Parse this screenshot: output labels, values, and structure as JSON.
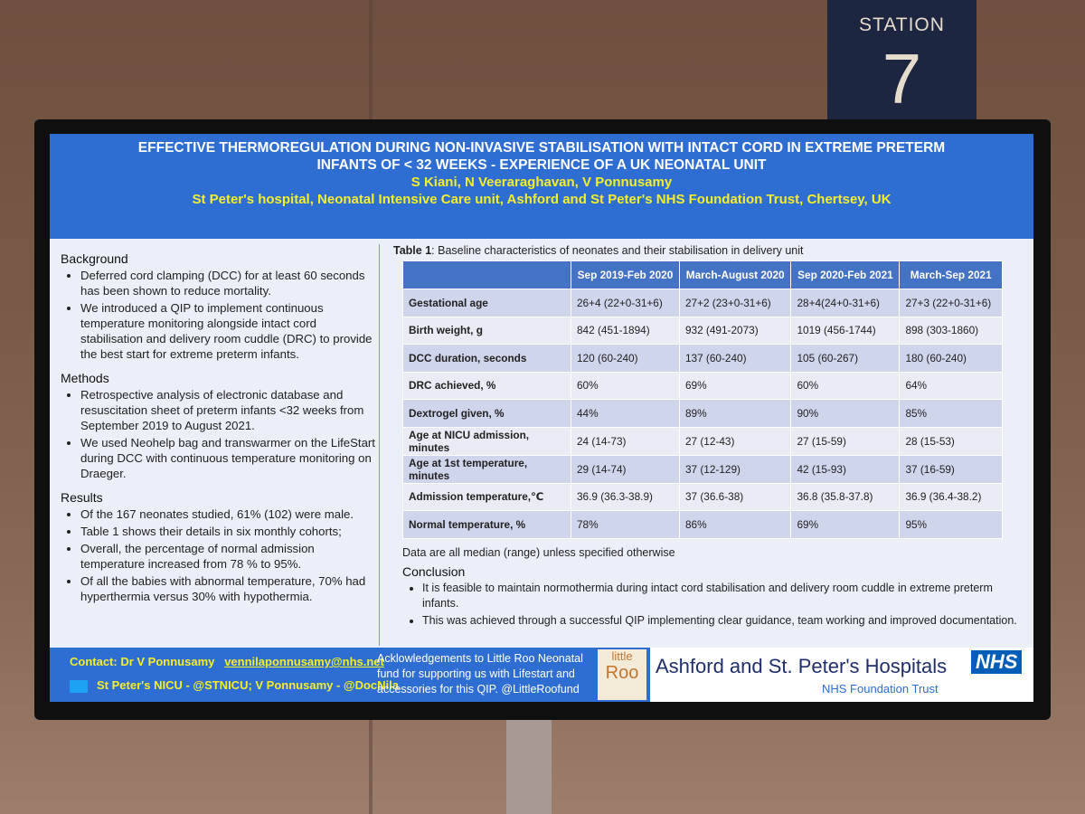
{
  "sign": {
    "label": "STATION",
    "number": "7"
  },
  "header": {
    "title_line1": "EFFECTIVE THERMOREGULATION DURING NON-INVASIVE STABILISATION WITH INTACT CORD IN EXTREME PRETERM",
    "title_line2": "INFANTS OF < 32 WEEKS - EXPERIENCE OF A UK NEONATAL UNIT",
    "authors": "S Kiani, N Veeraraghavan, V Ponnusamy",
    "affiliation": "St Peter's hospital, Neonatal Intensive Care unit, Ashford and St Peter's NHS Foundation Trust, Chertsey, UK"
  },
  "sections": [
    {
      "heading": "Background",
      "bullets": [
        "Deferred cord clamping (DCC) for at least 60 seconds has been shown to reduce mortality.",
        "We introduced a QIP to implement continuous temperature monitoring alongside intact cord stabilisation and delivery room cuddle (DRC) to provide the best start for extreme preterm infants."
      ]
    },
    {
      "heading": "Methods",
      "bullets": [
        "Retrospective analysis of electronic database and resuscitation sheet of preterm infants <32 weeks from September 2019 to August 2021.",
        "We used Neohelp bag and transwarmer on the LifeStart during DCC with continuous temperature monitoring on Draeger."
      ]
    },
    {
      "heading": "Results",
      "bullets": [
        "Of the 167 neonates studied, 61% (102) were male.",
        "Table 1 shows their details in six monthly cohorts;",
        "Overall, the percentage of normal admission temperature increased from 78 % to 95%.",
        "Of all the babies with abnormal temperature, 70% had hyperthermia versus 30% with hypothermia."
      ]
    }
  ],
  "table": {
    "caption_label": "Table 1",
    "caption": ": Baseline characteristics of neonates and their stabilisation in delivery unit",
    "columns": [
      "Sep 2019-Feb 2020",
      "March-August 2020",
      "Sep 2020-Feb 2021",
      "March-Sep 2021"
    ],
    "rows": [
      [
        "Gestational age",
        "26+4 (22+0-31+6)",
        "27+2 (23+0-31+6)",
        "28+4(24+0-31+6)",
        "27+3 (22+0-31+6)"
      ],
      [
        "Birth weight, g",
        "842 (451-1894)",
        "932 (491-2073)",
        "1019 (456-1744)",
        "898 (303-1860)"
      ],
      [
        "DCC duration, seconds",
        "120 (60-240)",
        "137 (60-240)",
        "105 (60-267)",
        "180 (60-240)"
      ],
      [
        "DRC achieved, %",
        "60%",
        "69%",
        "60%",
        "64%"
      ],
      [
        "Dextrogel given, %",
        "44%",
        "89%",
        "90%",
        "85%"
      ],
      [
        "Age at NICU admission, minutes",
        "24 (14-73)",
        "27 (12-43)",
        "27 (15-59)",
        "28 (15-53)"
      ],
      [
        "Age at 1st temperature, minutes",
        "29 (14-74)",
        "37 (12-129)",
        "42 (15-93)",
        "37 (16-59)"
      ],
      [
        "Admission temperature,℃",
        "36.9 (36.3-38.9)",
        "37 (36.6-38)",
        "36.8 (35.8-37.8)",
        "36.9 (36.4-38.2)"
      ],
      [
        "Normal temperature, %",
        "78%",
        "86%",
        "69%",
        "95%"
      ]
    ],
    "note": "Data are all median (range) unless specified otherwise"
  },
  "conclusion": {
    "heading": "Conclusion",
    "bullets": [
      "It is feasible to maintain normothermia during intact cord stabilisation and delivery room cuddle in extreme preterm infants.",
      "This was achieved through a successful QIP implementing clear guidance, team working and improved documentation."
    ]
  },
  "footer": {
    "contact": "Contact:  Dr V Ponnusamy",
    "email": "vennilaponnusamy@nhs.net",
    "twitter": "St Peter's NICU - @STNICU; V Ponnusamy - @DocNila",
    "acknowledgement": "Acklowledgements to Little Roo Neonatal fund for supporting us with Lifestart and accessories for this QIP. @LittleRoofund",
    "logo_top": "little",
    "logo_main": "Roo",
    "hospital": "Ashford and St. Peter's Hospitals",
    "nhs": "NHS",
    "trust": "NHS Foundation Trust"
  }
}
